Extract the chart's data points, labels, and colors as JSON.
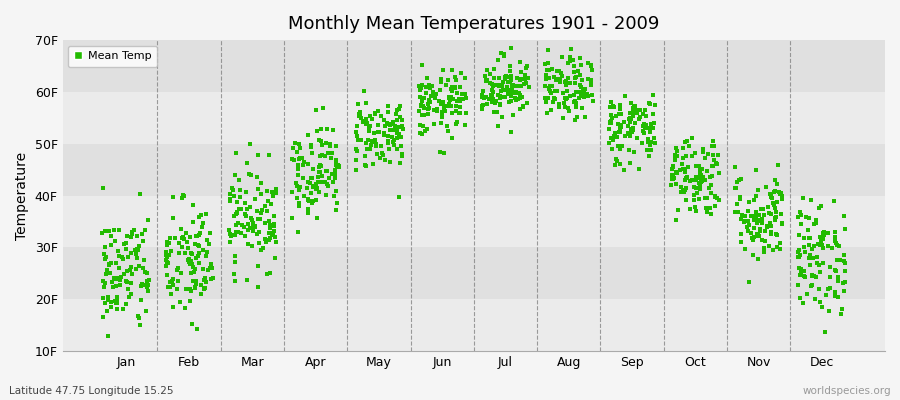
{
  "title": "Monthly Mean Temperatures 1901 - 2009",
  "ylabel": "Temperature",
  "subtitle": "Latitude 47.75 Longitude 15.25",
  "watermark": "worldspecies.org",
  "legend_label": "Mean Temp",
  "dot_color": "#22bb00",
  "fig_bg_color": "#f5f5f5",
  "band_colors": [
    "#ebebeb",
    "#e0e0e0"
  ],
  "yticks": [
    10,
    20,
    30,
    40,
    50,
    60,
    70
  ],
  "ytick_labels": [
    "10F",
    "20F",
    "30F",
    "40F",
    "50F",
    "60F",
    "70F"
  ],
  "months": [
    "Jan",
    "Feb",
    "Mar",
    "Apr",
    "May",
    "Jun",
    "Jul",
    "Aug",
    "Sep",
    "Oct",
    "Nov",
    "Dec"
  ],
  "monthly_means_f": [
    25.0,
    27.0,
    36.0,
    45.0,
    52.0,
    57.5,
    61.0,
    60.5,
    53.0,
    44.0,
    36.0,
    28.0
  ],
  "monthly_stds_f": [
    6.0,
    6.0,
    5.0,
    4.5,
    3.5,
    3.2,
    3.0,
    3.0,
    3.5,
    4.0,
    4.5,
    5.5
  ],
  "n_years": 109,
  "ylim": [
    10,
    70
  ],
  "xlim": [
    0.0,
    13.0
  ],
  "seed": 42
}
